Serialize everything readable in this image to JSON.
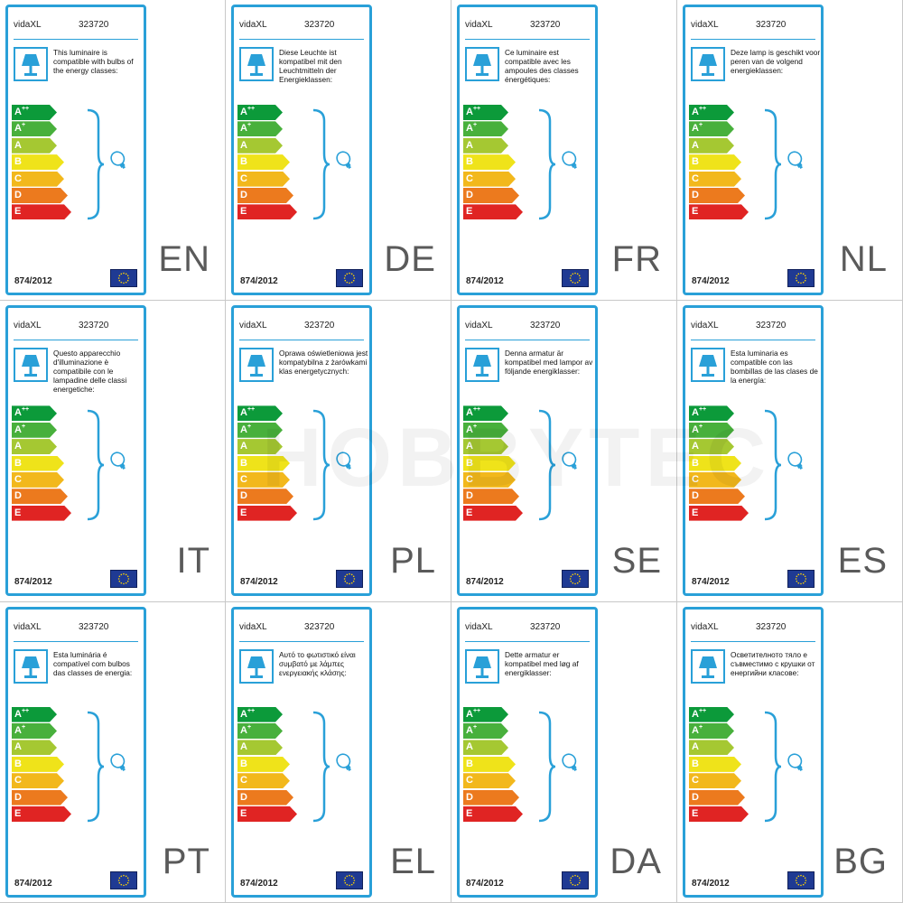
{
  "watermark": "HOBBYTEC",
  "energy_classes": [
    {
      "letter": "A",
      "sup": "++",
      "color": "#0c9a3a",
      "width": 50
    },
    {
      "letter": "A",
      "sup": "+",
      "color": "#48b03c",
      "width": 50
    },
    {
      "letter": "A",
      "sup": "",
      "color": "#a5c832",
      "width": 50
    },
    {
      "letter": "B",
      "sup": "",
      "color": "#efe31a",
      "width": 58
    },
    {
      "letter": "C",
      "sup": "",
      "color": "#f2b81c",
      "width": 58
    },
    {
      "letter": "D",
      "sup": "",
      "color": "#ec7a1e",
      "width": 62
    },
    {
      "letter": "E",
      "sup": "",
      "color": "#e02423",
      "width": 66
    }
  ],
  "colors": {
    "accent": "#29a0d8",
    "eu_blue": "#1f3a93",
    "eu_star": "#ffd400"
  },
  "labels": [
    {
      "lang": "EN",
      "brand": "vidaXL",
      "model": "323720",
      "regulation": "874/2012",
      "text": "This luminaire is compatible with bulbs of the energy classes:"
    },
    {
      "lang": "DE",
      "brand": "vidaXL",
      "model": "323720",
      "regulation": "874/2012",
      "text": "Diese Leuchte ist kompatibel mit den Leuchtmitteln der Energieklassen:"
    },
    {
      "lang": "FR",
      "brand": "vidaXL",
      "model": "323720",
      "regulation": "874/2012",
      "text": "Ce luminaire est compatible avec les ampoules des classes énergétiques:"
    },
    {
      "lang": "NL",
      "brand": "vidaXL",
      "model": "323720",
      "regulation": "874/2012",
      "text": "Deze lamp is geschikt voor peren van de volgend energieklassen:"
    },
    {
      "lang": "IT",
      "brand": "vidaXL",
      "model": "323720",
      "regulation": "874/2012",
      "text": "Questo apparecchio d'illuminazione è compatibile con le lampadine delle classi energetiche:"
    },
    {
      "lang": "PL",
      "brand": "vidaXL",
      "model": "323720",
      "regulation": "874/2012",
      "text": "Oprawa oświetleniowa jest kompatybilna z żarówkami klas energetycznych:"
    },
    {
      "lang": "SE",
      "brand": "vidaXL",
      "model": "323720",
      "regulation": "874/2012",
      "text": "Denna armatur är kompatibel med lampor av följande energiklasser:"
    },
    {
      "lang": "ES",
      "brand": "vidaXL",
      "model": "323720",
      "regulation": "874/2012",
      "text": "Esta luminaria es compatible con las bombillas de las clases de la energía:"
    },
    {
      "lang": "PT",
      "brand": "vidaXL",
      "model": "323720",
      "regulation": "874/2012",
      "text": "Esta luminária é compatível com bulbos das classes de energia:"
    },
    {
      "lang": "EL",
      "brand": "vidaXL",
      "model": "323720",
      "regulation": "874/2012",
      "text": "Αυτό το φωτιστικό είναι συμβατό με λάμπες ενεργειακής κλάσης:"
    },
    {
      "lang": "DA",
      "brand": "vidaXL",
      "model": "323720",
      "regulation": "874/2012",
      "text": "Dette armatur er kompatibel med løg af energiklasser:"
    },
    {
      "lang": "BG",
      "brand": "vidaXL",
      "model": "323720",
      "regulation": "874/2012",
      "text": "Осветителното тяло е съвместимо с крушки от енергийни класове:"
    }
  ]
}
